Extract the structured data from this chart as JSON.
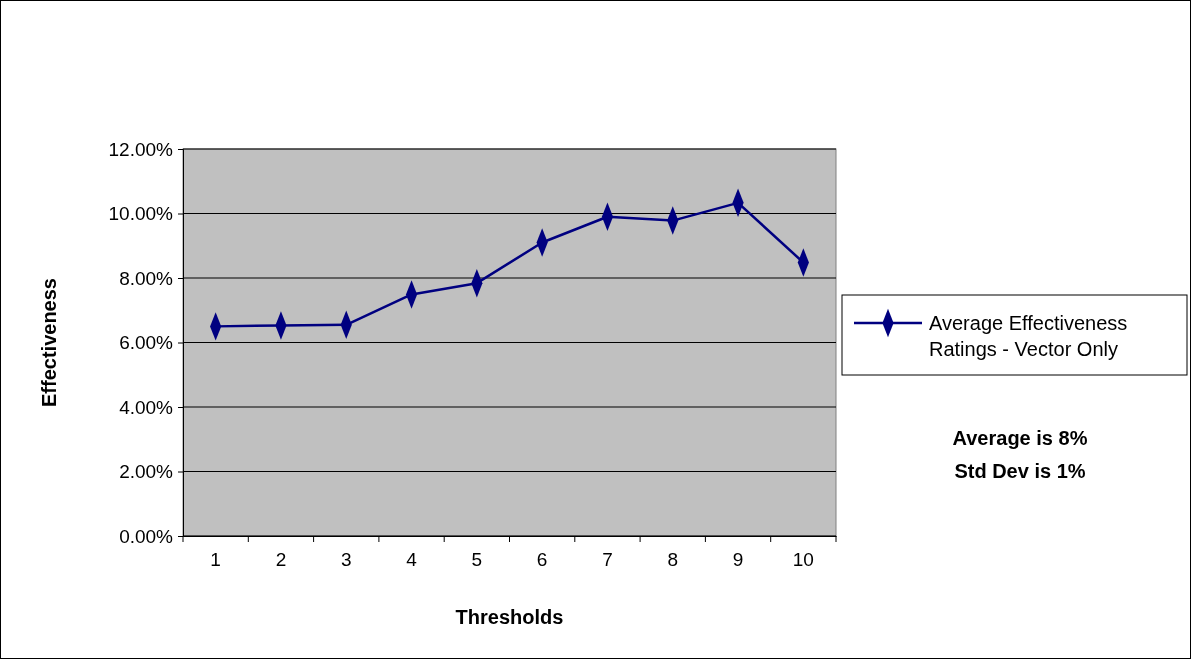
{
  "chart_data": {
    "type": "line",
    "xlabel": "Thresholds",
    "ylabel": "Effectiveness",
    "categories": [
      "1",
      "2",
      "3",
      "4",
      "5",
      "6",
      "7",
      "8",
      "9",
      "10"
    ],
    "series": [
      {
        "name": "Average Effectiveness Ratings - Vector Only",
        "color": "#000080",
        "values": [
          6.5,
          6.53,
          6.55,
          7.49,
          7.84,
          9.1,
          9.9,
          9.78,
          10.33,
          8.48
        ]
      }
    ],
    "ylim": [
      0,
      12
    ],
    "yticks": [
      {
        "value": 0,
        "label": "0.00%"
      },
      {
        "value": 2,
        "label": "2.00%"
      },
      {
        "value": 4,
        "label": "4.00%"
      },
      {
        "value": 6,
        "label": "6.00%"
      },
      {
        "value": 8,
        "label": "8.00%"
      },
      {
        "value": 10,
        "label": "10.00%"
      },
      {
        "value": 12,
        "label": "12.00%"
      }
    ],
    "grid": "y",
    "legend": "right",
    "marker": "diamond",
    "line_style": "solid",
    "annotations": [
      "Average is 8%",
      "Std Dev is 1%"
    ]
  }
}
